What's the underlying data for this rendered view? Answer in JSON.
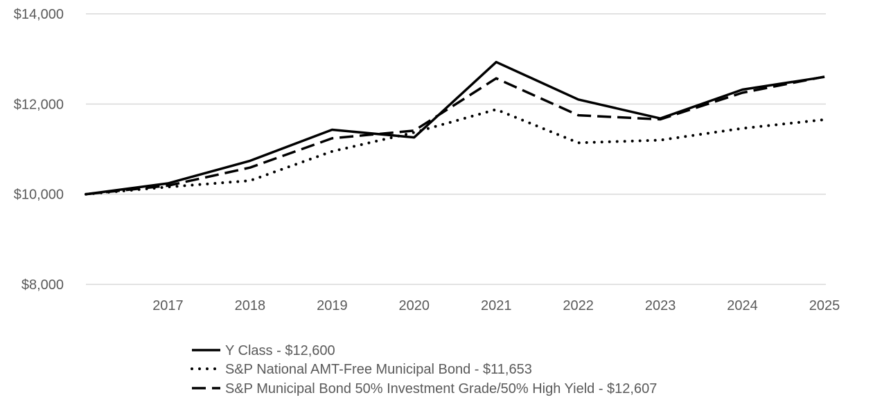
{
  "chart_data": {
    "type": "line",
    "title": "",
    "xlabel": "",
    "ylabel": "",
    "x": [
      "2016",
      "2017",
      "2018",
      "2019",
      "2020",
      "2021",
      "2022",
      "2023",
      "2024",
      "2025"
    ],
    "x_tick_labels": [
      "2017",
      "2018",
      "2019",
      "2020",
      "2021",
      "2022",
      "2023",
      "2024",
      "2025"
    ],
    "y_ticks": [
      8000,
      10000,
      12000,
      14000
    ],
    "y_tick_labels": [
      "$8,000",
      "$10,000",
      "$12,000",
      "$14,000"
    ],
    "ylim": [
      8000,
      14000
    ],
    "grid": true,
    "legend_position": "bottom",
    "series": [
      {
        "name": "Y Class",
        "legend_label": "Y Class - $12,600",
        "style": "solid",
        "values": [
          10000,
          10240,
          10740,
          11430,
          11260,
          12930,
          12100,
          11680,
          12320,
          12600
        ]
      },
      {
        "name": "S&P National AMT-Free Municipal Bond",
        "legend_label": "S&P National AMT-Free Municipal Bond - $11,653",
        "style": "dotted",
        "values": [
          10000,
          10160,
          10300,
          10950,
          11370,
          11880,
          11140,
          11200,
          11460,
          11653
        ]
      },
      {
        "name": "S&P Municipal Bond 50% Investment Grade/50% High Yield",
        "legend_label": "S&P Municipal Bond 50% Investment Grade/50% High Yield - $12,607",
        "style": "dashed",
        "values": [
          10000,
          10190,
          10590,
          11240,
          11410,
          12570,
          11750,
          11660,
          12250,
          12607
        ]
      }
    ],
    "colors": {
      "line": "#000000",
      "grid": "#d9d9d9",
      "text": "#595959"
    }
  }
}
